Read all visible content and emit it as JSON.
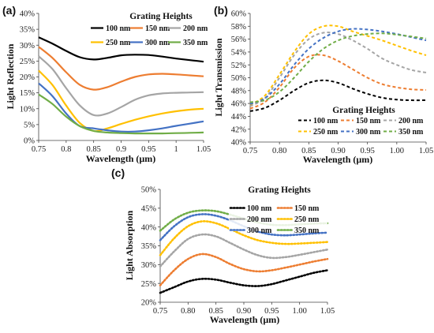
{
  "chart_data": [
    {
      "id": "a",
      "panel_label": "(a)",
      "type": "line",
      "line_style": "solid",
      "xlabel": "Wavelength (µm)",
      "ylabel": "Light Reflection",
      "xlim": [
        0.75,
        1.05
      ],
      "ylim": [
        0,
        40
      ],
      "x_ticks": [
        0.75,
        0.8,
        0.85,
        0.9,
        0.95,
        1,
        1.05
      ],
      "x_tick_labels": [
        "0.75",
        "0.8",
        "0.85",
        "0.9",
        "0.95",
        "1",
        "1.05"
      ],
      "y_ticks": [
        0,
        5,
        10,
        15,
        20,
        25,
        30,
        35,
        40
      ],
      "y_tick_labels": [
        "0%",
        "5%",
        "10%",
        "15%",
        "20%",
        "25%",
        "30%",
        "35%",
        "40%"
      ],
      "grid": false,
      "legend": {
        "title": "Grating Heights",
        "placement": "top-right",
        "columns": 3
      },
      "series": [
        {
          "name": "100 nm",
          "color": "#000000",
          "x": [
            0.75,
            0.775,
            0.8,
            0.825,
            0.85,
            0.875,
            0.9,
            0.925,
            0.95,
            0.975,
            1.0,
            1.025,
            1.05
          ],
          "y": [
            32.5,
            30.5,
            28.2,
            26.2,
            25.5,
            26.0,
            26.8,
            27.0,
            26.9,
            26.4,
            25.8,
            25.3,
            24.8
          ]
        },
        {
          "name": "150 nm",
          "color": "#ED7D31",
          "x": [
            0.75,
            0.775,
            0.8,
            0.825,
            0.85,
            0.875,
            0.9,
            0.925,
            0.95,
            0.975,
            1.0,
            1.025,
            1.05
          ],
          "y": [
            29.5,
            26.0,
            21.5,
            17.5,
            16.0,
            16.8,
            18.5,
            20.0,
            20.8,
            21.0,
            20.8,
            20.5,
            20.2
          ]
        },
        {
          "name": "200 nm",
          "color": "#A5A5A5",
          "x": [
            0.75,
            0.775,
            0.8,
            0.825,
            0.85,
            0.875,
            0.9,
            0.925,
            0.95,
            0.975,
            1.0,
            1.025,
            1.05
          ],
          "y": [
            26.5,
            22.5,
            16.5,
            11.0,
            8.0,
            8.5,
            10.5,
            12.8,
            14.2,
            14.8,
            15.0,
            15.1,
            15.2
          ]
        },
        {
          "name": "250 nm",
          "color": "#FFC000",
          "x": [
            0.75,
            0.775,
            0.8,
            0.825,
            0.85,
            0.875,
            0.9,
            0.925,
            0.95,
            0.975,
            1.0,
            1.025,
            1.05
          ],
          "y": [
            22.0,
            17.5,
            11.0,
            5.5,
            3.0,
            3.8,
            5.2,
            6.5,
            7.6,
            8.5,
            9.2,
            9.7,
            10.0
          ]
        },
        {
          "name": "300 nm",
          "color": "#4472C4",
          "x": [
            0.75,
            0.775,
            0.8,
            0.825,
            0.85,
            0.875,
            0.9,
            0.925,
            0.95,
            0.975,
            1.0,
            1.025,
            1.05
          ],
          "y": [
            18.0,
            14.0,
            8.5,
            4.5,
            3.8,
            3.2,
            2.8,
            2.8,
            3.2,
            3.8,
            4.6,
            5.3,
            6.0
          ]
        },
        {
          "name": "350 nm",
          "color": "#70AD47",
          "x": [
            0.75,
            0.775,
            0.8,
            0.825,
            0.85,
            0.875,
            0.9,
            0.925,
            0.95,
            0.975,
            1.0,
            1.025,
            1.05
          ],
          "y": [
            14.5,
            11.5,
            7.5,
            4.5,
            3.0,
            2.5,
            2.3,
            2.2,
            2.2,
            2.2,
            2.3,
            2.4,
            2.5
          ]
        }
      ]
    },
    {
      "id": "b",
      "panel_label": "(b)",
      "type": "line",
      "line_style": "dashed",
      "xlabel": "Wavelength (µm)",
      "ylabel": "Light Transmission",
      "xlim": [
        0.75,
        1.05
      ],
      "ylim": [
        40,
        60
      ],
      "x_ticks": [
        0.75,
        0.8,
        0.85,
        0.9,
        0.95,
        1.0,
        1.05
      ],
      "x_tick_labels": [
        "0.75",
        "0.80",
        "0.85",
        "0.90",
        "0.95",
        "1.00",
        "1.05"
      ],
      "y_ticks": [
        40,
        42,
        44,
        46,
        48,
        50,
        52,
        54,
        56,
        58,
        60
      ],
      "y_tick_labels": [
        "40%",
        "42%",
        "44%",
        "46%",
        "48%",
        "50%",
        "52%",
        "54%",
        "56%",
        "58%",
        "60%"
      ],
      "grid": false,
      "legend": {
        "title": "Grating Heights",
        "placement": "bottom-right",
        "columns": 3
      },
      "series": [
        {
          "name": "100 nm",
          "color": "#000000",
          "x": [
            0.75,
            0.775,
            0.8,
            0.825,
            0.85,
            0.875,
            0.9,
            0.925,
            0.95,
            0.975,
            1.0,
            1.025,
            1.05
          ],
          "y": [
            44.8,
            45.3,
            46.5,
            48.0,
            49.2,
            49.6,
            49.2,
            48.3,
            47.5,
            46.9,
            46.6,
            46.5,
            46.5
          ]
        },
        {
          "name": "150 nm",
          "color": "#ED7D31",
          "x": [
            0.75,
            0.775,
            0.8,
            0.825,
            0.85,
            0.875,
            0.9,
            0.925,
            0.95,
            0.975,
            1.0,
            1.025,
            1.05
          ],
          "y": [
            45.2,
            46.2,
            48.5,
            51.5,
            53.3,
            53.5,
            52.6,
            51.3,
            50.0,
            49.0,
            48.5,
            48.2,
            48.1
          ]
        },
        {
          "name": "200 nm",
          "color": "#A5A5A5",
          "x": [
            0.75,
            0.775,
            0.8,
            0.825,
            0.85,
            0.875,
            0.9,
            0.925,
            0.95,
            0.975,
            1.0,
            1.025,
            1.05
          ],
          "y": [
            45.6,
            46.8,
            50.0,
            53.5,
            56.0,
            57.0,
            56.8,
            55.8,
            54.5,
            53.0,
            52.0,
            51.2,
            50.8
          ]
        },
        {
          "name": "250 nm",
          "color": "#FFC000",
          "x": [
            0.75,
            0.775,
            0.8,
            0.825,
            0.85,
            0.875,
            0.9,
            0.925,
            0.95,
            0.975,
            1.0,
            1.025,
            1.05
          ],
          "y": [
            45.8,
            47.2,
            50.5,
            54.0,
            56.8,
            58.0,
            58.0,
            57.2,
            56.5,
            55.8,
            55.0,
            54.2,
            53.5
          ]
        },
        {
          "name": "300 nm",
          "color": "#4472C4",
          "x": [
            0.75,
            0.775,
            0.8,
            0.825,
            0.85,
            0.875,
            0.9,
            0.925,
            0.95,
            0.975,
            1.0,
            1.025,
            1.05
          ],
          "y": [
            45.9,
            46.8,
            49.0,
            52.0,
            54.5,
            56.2,
            57.2,
            57.6,
            57.5,
            57.2,
            56.8,
            56.3,
            55.8
          ]
        },
        {
          "name": "350 nm",
          "color": "#70AD47",
          "x": [
            0.75,
            0.775,
            0.8,
            0.825,
            0.85,
            0.875,
            0.9,
            0.925,
            0.95,
            0.975,
            1.0,
            1.025,
            1.05
          ],
          "y": [
            46.2,
            46.5,
            47.8,
            50.0,
            52.5,
            54.5,
            55.8,
            56.5,
            56.8,
            56.9,
            56.7,
            56.4,
            56.1
          ]
        }
      ]
    },
    {
      "id": "c",
      "panel_label": "(c)",
      "type": "line",
      "line_style": "dotted",
      "xlabel": "Wavelength (µm)",
      "ylabel": "Light Absorption",
      "xlim": [
        0.75,
        1.05
      ],
      "ylim": [
        20,
        50
      ],
      "x_ticks": [
        0.75,
        0.8,
        0.85,
        0.9,
        0.95,
        1.0,
        1.05
      ],
      "x_tick_labels": [
        "0.75",
        "0.80",
        "0.85",
        "0.90",
        "0.95",
        "1.00",
        "1.05"
      ],
      "y_ticks": [
        20,
        25,
        30,
        35,
        40,
        45,
        50
      ],
      "y_tick_labels": [
        "20%",
        "25%",
        "30%",
        "35%",
        "40%",
        "45%",
        "50%"
      ],
      "grid": false,
      "legend": {
        "title": "Grating Heights",
        "placement": "top-right",
        "columns": 2
      },
      "series": [
        {
          "name": "100 nm",
          "color": "#000000",
          "x": [
            0.75,
            0.775,
            0.8,
            0.825,
            0.85,
            0.875,
            0.9,
            0.925,
            0.95,
            0.975,
            1.0,
            1.025,
            1.05
          ],
          "y": [
            22.5,
            24.0,
            25.5,
            26.2,
            26.0,
            25.2,
            24.5,
            24.3,
            24.8,
            25.8,
            26.8,
            27.8,
            28.5
          ]
        },
        {
          "name": "150 nm",
          "color": "#ED7D31",
          "x": [
            0.75,
            0.775,
            0.8,
            0.825,
            0.85,
            0.875,
            0.9,
            0.925,
            0.95,
            0.975,
            1.0,
            1.025,
            1.05
          ],
          "y": [
            24.5,
            28.5,
            31.5,
            32.8,
            32.0,
            30.2,
            28.8,
            28.2,
            28.5,
            29.2,
            30.0,
            30.8,
            31.5
          ]
        },
        {
          "name": "200 nm",
          "color": "#A5A5A5",
          "x": [
            0.75,
            0.775,
            0.8,
            0.825,
            0.85,
            0.875,
            0.9,
            0.925,
            0.95,
            0.975,
            1.0,
            1.025,
            1.05
          ],
          "y": [
            29.5,
            33.5,
            36.8,
            38.0,
            37.5,
            35.8,
            34.0,
            32.5,
            31.8,
            32.0,
            32.6,
            33.3,
            34.0
          ]
        },
        {
          "name": "250 nm",
          "color": "#FFC000",
          "x": [
            0.75,
            0.775,
            0.8,
            0.825,
            0.85,
            0.875,
            0.9,
            0.925,
            0.95,
            0.975,
            1.0,
            1.025,
            1.05
          ],
          "y": [
            32.5,
            37.0,
            40.2,
            41.5,
            41.0,
            39.5,
            37.8,
            36.5,
            35.8,
            35.5,
            35.6,
            35.8,
            36.0
          ]
        },
        {
          "name": "300 nm",
          "color": "#4472C4",
          "x": [
            0.75,
            0.775,
            0.8,
            0.825,
            0.85,
            0.875,
            0.9,
            0.925,
            0.95,
            0.975,
            1.0,
            1.025,
            1.05
          ],
          "y": [
            36.5,
            40.2,
            42.6,
            43.4,
            43.0,
            41.8,
            40.2,
            38.8,
            38.0,
            37.8,
            38.0,
            38.3,
            38.5
          ]
        },
        {
          "name": "350 nm",
          "color": "#70AD47",
          "x": [
            0.75,
            0.775,
            0.8,
            0.825,
            0.85,
            0.875,
            0.9,
            0.925,
            0.95,
            0.975,
            1.0,
            1.025,
            1.05
          ],
          "y": [
            39.0,
            42.0,
            43.8,
            44.4,
            44.2,
            43.3,
            42.2,
            41.2,
            40.6,
            40.5,
            40.7,
            40.9,
            41.0
          ]
        }
      ]
    }
  ]
}
